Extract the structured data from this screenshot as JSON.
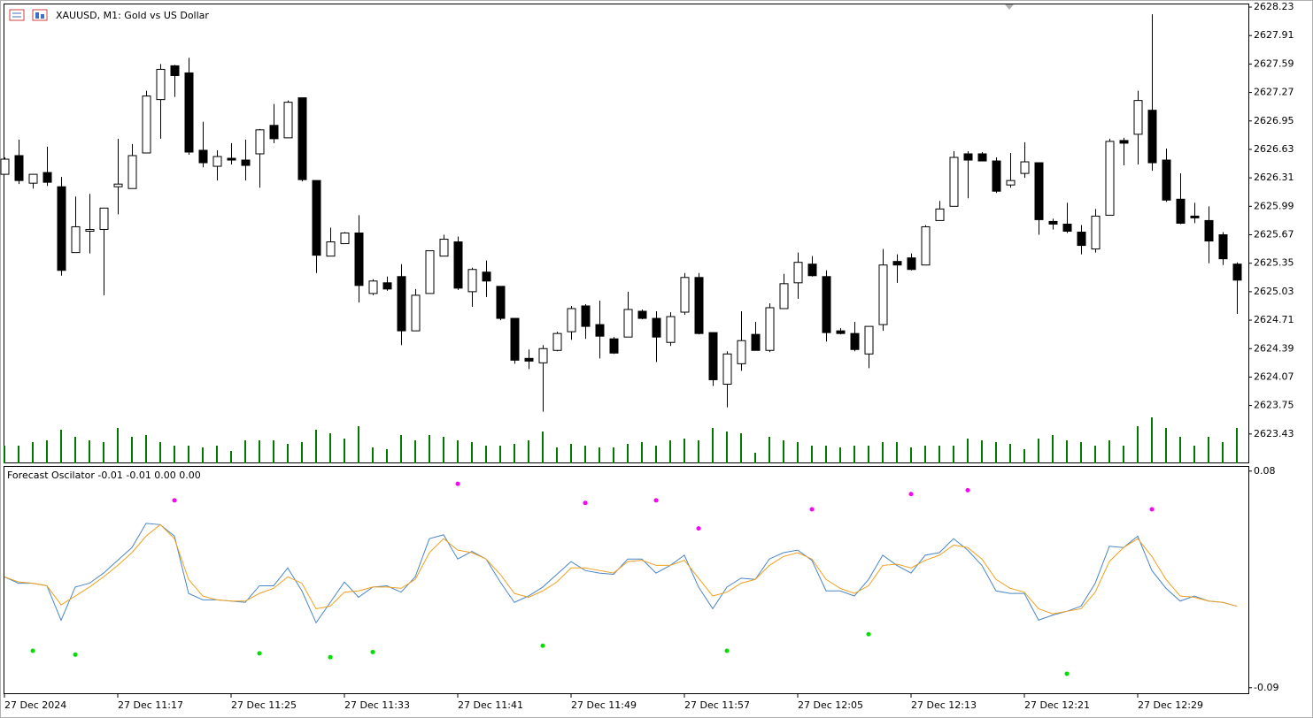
{
  "chart_data": [
    {
      "type": "candlestick",
      "title": "XAUUSD, M1:  Gold vs US Dollar",
      "up_color": "#ffffff",
      "down_color": "#000000",
      "volume_color": "#007a00",
      "ylim": [
        2623.1,
        2628.27
      ],
      "yticks": [
        2628.23,
        2627.91,
        2627.59,
        2627.27,
        2626.95,
        2626.63,
        2626.31,
        2625.99,
        2625.67,
        2625.35,
        2625.03,
        2624.71,
        2624.39,
        2624.07,
        2623.75,
        2623.43
      ],
      "open": [
        2626.35,
        2626.56,
        2626.25,
        2626.37,
        2626.21,
        2625.47,
        2625.71,
        2625.73,
        2626.21,
        2626.19,
        2626.59,
        2627.19,
        2627.57,
        2627.49,
        2626.62,
        2626.44,
        2626.53,
        2626.51,
        2626.58,
        2626.9,
        2626.76,
        2627.21,
        2626.28,
        2625.43,
        2625.57,
        2625.69,
        2625.01,
        2625.13,
        2625.2,
        2624.59,
        2625.01,
        2625.43,
        2625.59,
        2625.03,
        2625.25,
        2625.09,
        2624.73,
        2624.28,
        2624.23,
        2624.37,
        2624.58,
        2624.87,
        2624.66,
        2624.5,
        2624.52,
        2624.81,
        2624.73,
        2624.46,
        2624.8,
        2625.19,
        2624.57,
        2623.99,
        2624.22,
        2624.55,
        2624.37,
        2624.84,
        2625.13,
        2625.34,
        2625.2,
        2624.59,
        2624.56,
        2624.33,
        2624.66,
        2625.37,
        2625.41,
        2625.33,
        2625.83,
        2625.99,
        2626.58,
        2626.58,
        2626.5,
        2626.23,
        2626.36,
        2626.48,
        2625.82,
        2625.79,
        2625.7,
        2625.51,
        2625.89,
        2626.73,
        2626.8,
        2627.07,
        2626.51,
        2626.07,
        2625.88,
        2625.83,
        2625.67,
        2625.34
      ],
      "high": [
        2626.54,
        2626.74,
        2626.35,
        2626.66,
        2626.32,
        2626.1,
        2626.13,
        2625.97,
        2626.75,
        2626.69,
        2627.29,
        2627.59,
        2627.58,
        2627.66,
        2626.94,
        2626.62,
        2626.7,
        2626.74,
        2626.86,
        2627.14,
        2627.18,
        2627.21,
        2626.28,
        2625.75,
        2625.7,
        2625.89,
        2625.17,
        2625.2,
        2625.34,
        2625.06,
        2625.49,
        2625.67,
        2625.65,
        2625.3,
        2625.38,
        2625.09,
        2624.73,
        2624.38,
        2624.43,
        2624.58,
        2624.87,
        2624.89,
        2624.93,
        2624.52,
        2625.03,
        2624.83,
        2624.81,
        2624.8,
        2625.24,
        2625.24,
        2624.57,
        2624.36,
        2624.81,
        2624.69,
        2624.9,
        2625.23,
        2625.47,
        2625.43,
        2625.27,
        2624.62,
        2624.69,
        2624.64,
        2625.51,
        2625.45,
        2625.46,
        2625.78,
        2626.05,
        2626.61,
        2626.61,
        2626.6,
        2626.54,
        2626.59,
        2626.71,
        2626.48,
        2625.85,
        2626.03,
        2625.78,
        2625.96,
        2626.75,
        2626.76,
        2627.29,
        2628.15,
        2626.64,
        2626.36,
        2626.03,
        2625.99,
        2625.7,
        2625.36
      ],
      "low": [
        2626.35,
        2626.24,
        2626.19,
        2626.22,
        2625.21,
        2625.47,
        2625.46,
        2624.99,
        2625.9,
        2626.19,
        2626.59,
        2626.75,
        2627.22,
        2626.57,
        2626.43,
        2626.28,
        2626.46,
        2626.28,
        2626.2,
        2626.7,
        2626.76,
        2626.27,
        2625.24,
        2625.43,
        2625.57,
        2624.91,
        2624.99,
        2625.04,
        2624.43,
        2624.59,
        2625.01,
        2625.43,
        2625.05,
        2624.86,
        2624.97,
        2624.71,
        2624.22,
        2624.16,
        2623.68,
        2624.36,
        2624.49,
        2624.5,
        2624.28,
        2624.33,
        2624.52,
        2624.72,
        2624.24,
        2624.42,
        2624.77,
        2624.55,
        2623.97,
        2623.73,
        2624.14,
        2624.37,
        2624.35,
        2624.84,
        2624.95,
        2625.2,
        2624.47,
        2624.55,
        2624.36,
        2624.17,
        2624.59,
        2625.13,
        2625.27,
        2625.33,
        2625.83,
        2625.99,
        2626.08,
        2626.5,
        2626.14,
        2626.2,
        2626.31,
        2625.67,
        2625.73,
        2625.69,
        2625.45,
        2625.47,
        2625.89,
        2626.45,
        2626.46,
        2626.39,
        2626.04,
        2625.79,
        2625.8,
        2625.35,
        2625.33,
        2624.78
      ],
      "close": [
        2626.52,
        2626.28,
        2626.35,
        2626.26,
        2625.27,
        2625.76,
        2625.73,
        2625.97,
        2626.24,
        2626.56,
        2627.23,
        2627.53,
        2627.46,
        2626.6,
        2626.48,
        2626.55,
        2626.51,
        2626.45,
        2626.85,
        2626.75,
        2627.16,
        2626.29,
        2625.44,
        2625.59,
        2625.69,
        2625.1,
        2625.15,
        2625.06,
        2624.59,
        2624.99,
        2625.49,
        2625.62,
        2625.07,
        2625.28,
        2625.15,
        2624.73,
        2624.26,
        2624.25,
        2624.39,
        2624.56,
        2624.84,
        2624.64,
        2624.53,
        2624.34,
        2624.83,
        2624.73,
        2624.52,
        2624.75,
        2625.19,
        2624.56,
        2624.04,
        2624.33,
        2624.48,
        2624.37,
        2624.85,
        2625.12,
        2625.36,
        2625.21,
        2624.57,
        2624.56,
        2624.38,
        2624.64,
        2625.33,
        2625.33,
        2625.28,
        2625.76,
        2625.96,
        2626.54,
        2626.51,
        2626.5,
        2626.16,
        2626.28,
        2626.49,
        2625.84,
        2625.79,
        2625.71,
        2625.55,
        2625.88,
        2626.72,
        2626.7,
        2627.18,
        2626.48,
        2626.06,
        2625.8,
        2625.86,
        2625.6,
        2625.4,
        2625.16
      ],
      "volume": [
        20,
        20,
        24,
        26,
        38,
        30,
        26,
        24,
        40,
        30,
        32,
        24,
        20,
        20,
        18,
        20,
        14,
        26,
        26,
        26,
        22,
        24,
        38,
        34,
        28,
        42,
        18,
        16,
        32,
        26,
        32,
        30,
        26,
        24,
        20,
        20,
        22,
        26,
        36,
        18,
        22,
        20,
        18,
        18,
        22,
        24,
        20,
        26,
        28,
        26,
        40,
        36,
        34,
        12,
        30,
        26,
        24,
        20,
        20,
        18,
        20,
        20,
        24,
        24,
        18,
        20,
        20,
        20,
        28,
        26,
        24,
        22,
        16,
        28,
        32,
        26,
        24,
        20,
        26,
        20,
        42,
        52,
        40,
        30,
        20,
        30,
        24,
        40
      ]
    },
    {
      "type": "line",
      "title": "Forecast Oscilator -0.01 -0.01 0.00 0.00",
      "ylim": [
        -0.095,
        0.084
      ],
      "yticks": [
        0.08,
        -0.09
      ],
      "categories": [
        "27 Dec 2024",
        null,
        null,
        null,
        null,
        null,
        null,
        null,
        "27 Dec 11:17",
        null,
        null,
        null,
        null,
        null,
        null,
        null,
        "27 Dec 11:25",
        null,
        null,
        null,
        null,
        null,
        null,
        null,
        "27 Dec 11:33",
        null,
        null,
        null,
        null,
        null,
        null,
        null,
        "27 Dec 11:41",
        null,
        null,
        null,
        null,
        null,
        null,
        null,
        "27 Dec 11:49",
        null,
        null,
        null,
        null,
        null,
        null,
        null,
        "27 Dec 11:57",
        null,
        null,
        null,
        null,
        null,
        null,
        null,
        "27 Dec 12:05",
        null,
        null,
        null,
        null,
        null,
        null,
        null,
        "27 Dec 12:13",
        null,
        null,
        null,
        null,
        null,
        null,
        null,
        "27 Dec 12:21",
        null,
        null,
        null,
        null,
        null,
        null,
        null,
        "27 Dec 12:29",
        null,
        null,
        null,
        null,
        null,
        null,
        null
      ],
      "series": [
        {
          "type": "line",
          "color": "#4a86c8",
          "values": [
            -0.003,
            -0.008,
            -0.008,
            -0.01,
            -0.037,
            -0.011,
            -0.008,
            0.0,
            0.01,
            0.02,
            0.039,
            0.038,
            0.029,
            -0.016,
            -0.021,
            -0.021,
            -0.022,
            -0.023,
            -0.01,
            -0.01,
            0.004,
            -0.014,
            -0.039,
            -0.023,
            -0.007,
            -0.019,
            -0.011,
            -0.01,
            -0.015,
            -0.003,
            0.027,
            0.03,
            0.011,
            0.017,
            0.011,
            -0.007,
            -0.023,
            -0.018,
            -0.011,
            -0.001,
            0.009,
            0.002,
            0.0,
            -0.001,
            0.011,
            0.011,
            0.0,
            0.006,
            0.014,
            -0.011,
            -0.028,
            -0.011,
            -0.004,
            -0.005,
            0.011,
            0.016,
            0.018,
            0.01,
            -0.014,
            -0.014,
            -0.018,
            -0.005,
            0.014,
            0.006,
            0.0,
            0.014,
            0.016,
            0.027,
            0.018,
            0.006,
            -0.014,
            -0.016,
            -0.016,
            -0.037,
            -0.033,
            -0.03,
            -0.026,
            -0.008,
            0.021,
            0.02,
            0.029,
            0.002,
            -0.012,
            -0.022,
            -0.018,
            -0.022,
            -0.023,
            -0.026
          ]
        },
        {
          "type": "line",
          "color": "#f0a020",
          "values": [
            -0.003,
            -0.007,
            -0.008,
            -0.01,
            -0.025,
            -0.018,
            -0.011,
            -0.003,
            0.006,
            0.016,
            0.029,
            0.038,
            0.027,
            -0.005,
            -0.018,
            -0.021,
            -0.022,
            -0.022,
            -0.016,
            -0.012,
            -0.003,
            -0.008,
            -0.028,
            -0.026,
            -0.015,
            -0.014,
            -0.011,
            -0.011,
            -0.012,
            -0.005,
            0.016,
            0.027,
            0.018,
            0.016,
            0.011,
            -0.001,
            -0.016,
            -0.019,
            -0.014,
            -0.007,
            0.004,
            0.004,
            0.002,
            0.0,
            0.009,
            0.01,
            0.006,
            0.006,
            0.01,
            -0.004,
            -0.018,
            -0.015,
            -0.008,
            -0.005,
            0.006,
            0.013,
            0.016,
            0.011,
            -0.005,
            -0.012,
            -0.016,
            -0.01,
            0.006,
            0.007,
            0.004,
            0.01,
            0.014,
            0.022,
            0.02,
            0.011,
            -0.005,
            -0.012,
            -0.015,
            -0.028,
            -0.032,
            -0.03,
            -0.028,
            -0.015,
            0.009,
            0.02,
            0.027,
            0.013,
            -0.005,
            -0.018,
            -0.019,
            -0.022,
            -0.023,
            -0.026
          ]
        },
        {
          "type": "scatter",
          "color": "#ff00ff",
          "values": [
            null,
            null,
            null,
            null,
            null,
            null,
            null,
            null,
            null,
            null,
            null,
            null,
            0.057,
            null,
            null,
            null,
            null,
            null,
            null,
            null,
            null,
            null,
            null,
            null,
            null,
            null,
            null,
            null,
            null,
            null,
            null,
            null,
            0.07,
            null,
            null,
            null,
            null,
            null,
            null,
            null,
            null,
            0.055,
            null,
            null,
            null,
            null,
            0.057,
            null,
            null,
            0.035,
            null,
            null,
            null,
            null,
            null,
            null,
            null,
            0.05,
            null,
            null,
            null,
            null,
            null,
            null,
            0.062,
            null,
            null,
            null,
            0.065,
            null,
            null,
            null,
            null,
            null,
            null,
            null,
            null,
            null,
            null,
            null,
            null,
            0.05,
            null,
            null,
            null,
            null,
            null,
            null
          ]
        },
        {
          "type": "scatter",
          "color": "#00e000",
          "values": [
            null,
            null,
            -0.061,
            null,
            null,
            -0.064,
            null,
            null,
            null,
            null,
            null,
            null,
            null,
            null,
            null,
            null,
            null,
            null,
            -0.063,
            null,
            null,
            null,
            null,
            -0.066,
            null,
            null,
            -0.062,
            null,
            null,
            null,
            null,
            null,
            null,
            null,
            null,
            null,
            null,
            null,
            -0.057,
            null,
            null,
            null,
            null,
            null,
            null,
            null,
            null,
            null,
            null,
            null,
            null,
            -0.061,
            null,
            null,
            null,
            null,
            null,
            null,
            null,
            null,
            null,
            -0.048,
            null,
            null,
            null,
            null,
            null,
            null,
            null,
            null,
            null,
            null,
            null,
            null,
            null,
            -0.079,
            null,
            null,
            null,
            null,
            null,
            null,
            null,
            null,
            null,
            null,
            null,
            null
          ]
        }
      ]
    }
  ]
}
